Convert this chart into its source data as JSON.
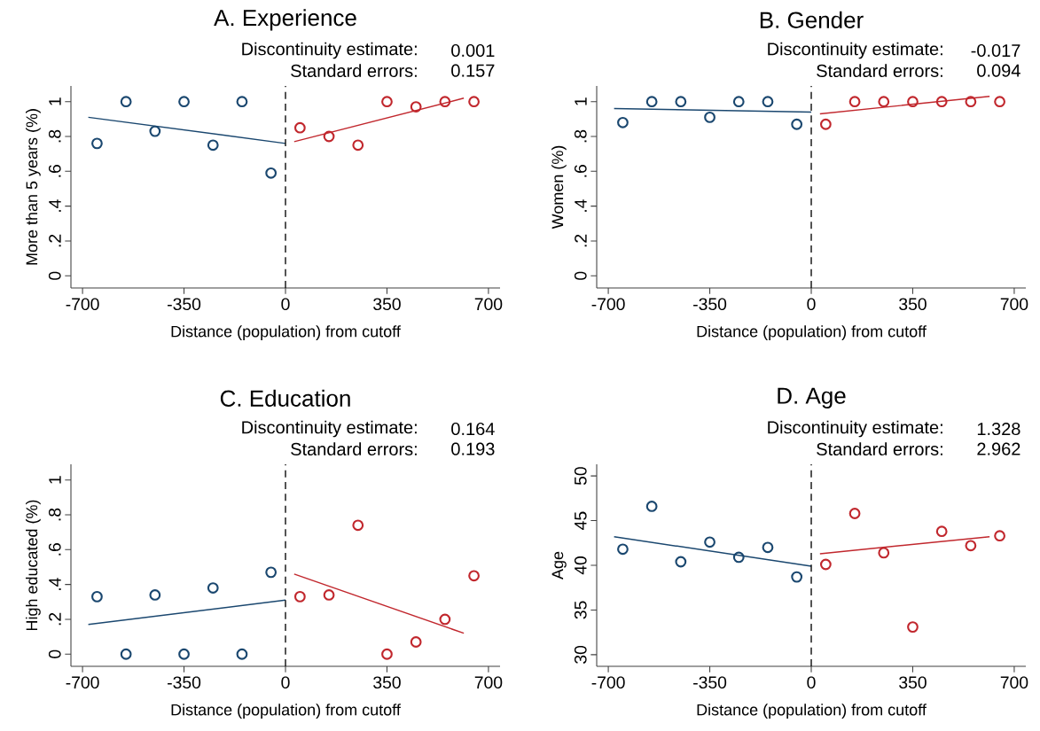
{
  "chart_data": [
    {
      "type": "scatter",
      "title": "A. Experience",
      "xlabel": "Distance (population) from cutoff",
      "ylabel": "More than 5 years (%)",
      "annotations": [
        "Discontinuity estimate:",
        "0.001",
        "Standard errors:",
        "0.157"
      ],
      "xlim": [
        -740,
        740
      ],
      "ylim": [
        -0.07,
        1.09
      ],
      "xticks": [
        -700,
        -350,
        0,
        350,
        700
      ],
      "yticks": [
        0,
        {
          "value": 0.2,
          "label": ".2"
        },
        {
          "value": 0.4,
          "label": ".4"
        },
        {
          "value": 0.6,
          "label": ".6"
        },
        {
          "value": 0.8,
          "label": ".8"
        },
        1
      ],
      "ref_lines": [
        {
          "axis": "x",
          "value": 0,
          "color": "#000000",
          "line_style": "dashed"
        }
      ],
      "series": [
        {
          "marker": "circle",
          "color": "#1a476f",
          "x": [
            -650,
            -550,
            -450,
            -350,
            -250,
            -150,
            -50
          ],
          "values": [
            0.76,
            1,
            0.83,
            1,
            0.75,
            1,
            0.59
          ]
        },
        {
          "marker": "circle",
          "color": "#c1272d",
          "x": [
            50,
            150,
            250,
            350,
            450,
            550,
            650
          ],
          "values": [
            0.85,
            0.8,
            0.75,
            1,
            0.97,
            1,
            1
          ]
        },
        {
          "type": "line",
          "color": "#1a476f",
          "x": [
            -680,
            0
          ],
          "values": [
            0.91,
            0.76
          ]
        },
        {
          "type": "line",
          "color": "#c1272d",
          "x": [
            30,
            615
          ],
          "values": [
            0.77,
            1.02
          ]
        }
      ]
    },
    {
      "type": "scatter",
      "title": "B. Gender",
      "xlabel": "Distance (population) from cutoff",
      "ylabel": "Women (%)",
      "annotations": [
        "Discontinuity estimate:",
        "-0.017",
        "Standard errors:",
        "0.094"
      ],
      "xlim": [
        -740,
        740
      ],
      "ylim": [
        -0.07,
        1.09
      ],
      "xticks": [
        -700,
        -350,
        0,
        350,
        700
      ],
      "yticks": [
        0,
        {
          "value": 0.2,
          "label": ".2"
        },
        {
          "value": 0.4,
          "label": ".4"
        },
        {
          "value": 0.6,
          "label": ".6"
        },
        {
          "value": 0.8,
          "label": ".8"
        },
        1
      ],
      "ref_lines": [
        {
          "axis": "x",
          "value": 0,
          "color": "#000000",
          "line_style": "dashed"
        }
      ],
      "series": [
        {
          "marker": "circle",
          "color": "#1a476f",
          "x": [
            -650,
            -550,
            -450,
            -350,
            -250,
            -150,
            -50
          ],
          "values": [
            0.88,
            1,
            1,
            0.91,
            1,
            1,
            0.87
          ]
        },
        {
          "marker": "circle",
          "color": "#c1272d",
          "x": [
            50,
            150,
            250,
            350,
            450,
            550,
            650
          ],
          "values": [
            0.87,
            1,
            1,
            1,
            1,
            1,
            1
          ]
        },
        {
          "type": "line",
          "color": "#1a476f",
          "x": [
            -680,
            0
          ],
          "values": [
            0.96,
            0.94
          ]
        },
        {
          "type": "line",
          "color": "#c1272d",
          "x": [
            30,
            615
          ],
          "values": [
            0.93,
            1.03
          ]
        }
      ]
    },
    {
      "type": "scatter",
      "title": "C. Education",
      "xlabel": "Distance (population) from cutoff",
      "ylabel": "High educated (%)",
      "annotations": [
        "Discontinuity estimate:",
        "0.164",
        "Standard errors:",
        "0.193"
      ],
      "xlim": [
        -740,
        740
      ],
      "ylim": [
        -0.07,
        1.09
      ],
      "xticks": [
        -700,
        -350,
        0,
        350,
        700
      ],
      "yticks": [
        0,
        {
          "value": 0.2,
          "label": ".2"
        },
        {
          "value": 0.4,
          "label": ".4"
        },
        {
          "value": 0.6,
          "label": ".6"
        },
        {
          "value": 0.8,
          "label": ".8"
        },
        1
      ],
      "ref_lines": [
        {
          "axis": "x",
          "value": 0,
          "color": "#000000",
          "line_style": "dashed"
        }
      ],
      "series": [
        {
          "marker": "circle",
          "color": "#1a476f",
          "x": [
            -650,
            -550,
            -450,
            -350,
            -250,
            -150,
            -50
          ],
          "values": [
            0.33,
            0,
            0.34,
            0,
            0.38,
            0,
            0.47
          ]
        },
        {
          "marker": "circle",
          "color": "#c1272d",
          "x": [
            50,
            150,
            250,
            350,
            450,
            550,
            650
          ],
          "values": [
            0.33,
            0.34,
            0.74,
            0,
            0.07,
            0.2,
            0.45
          ]
        },
        {
          "type": "line",
          "color": "#1a476f",
          "x": [
            -680,
            0
          ],
          "values": [
            0.17,
            0.31
          ]
        },
        {
          "type": "line",
          "color": "#c1272d",
          "x": [
            30,
            615
          ],
          "values": [
            0.46,
            0.12
          ]
        }
      ]
    },
    {
      "type": "scatter",
      "title": "D. Age",
      "xlabel": "Distance (population) from cutoff",
      "ylabel": "Age",
      "annotations": [
        "Discontinuity estimate:",
        "1.328",
        "Standard errors:",
        "2.962"
      ],
      "xlim": [
        -740,
        740
      ],
      "ylim": [
        28.7,
        51.3
      ],
      "xticks": [
        -700,
        -350,
        0,
        350,
        700
      ],
      "yticks": [
        30,
        35,
        40,
        45,
        50
      ],
      "ref_lines": [
        {
          "axis": "x",
          "value": 0,
          "color": "#000000",
          "line_style": "dashed"
        }
      ],
      "series": [
        {
          "marker": "circle",
          "color": "#1a476f",
          "x": [
            -650,
            -550,
            -450,
            -350,
            -250,
            -150,
            -50
          ],
          "values": [
            41.8,
            46.6,
            40.4,
            42.6,
            40.9,
            42.0,
            38.7
          ]
        },
        {
          "marker": "circle",
          "color": "#c1272d",
          "x": [
            50,
            150,
            250,
            350,
            450,
            550,
            650
          ],
          "values": [
            40.1,
            45.8,
            41.4,
            33.1,
            43.8,
            42.2,
            43.3
          ]
        },
        {
          "type": "line",
          "color": "#1a476f",
          "x": [
            -680,
            0
          ],
          "values": [
            43.2,
            39.9
          ]
        },
        {
          "type": "line",
          "color": "#c1272d",
          "x": [
            30,
            615
          ],
          "values": [
            41.3,
            43.2
          ]
        }
      ]
    }
  ]
}
